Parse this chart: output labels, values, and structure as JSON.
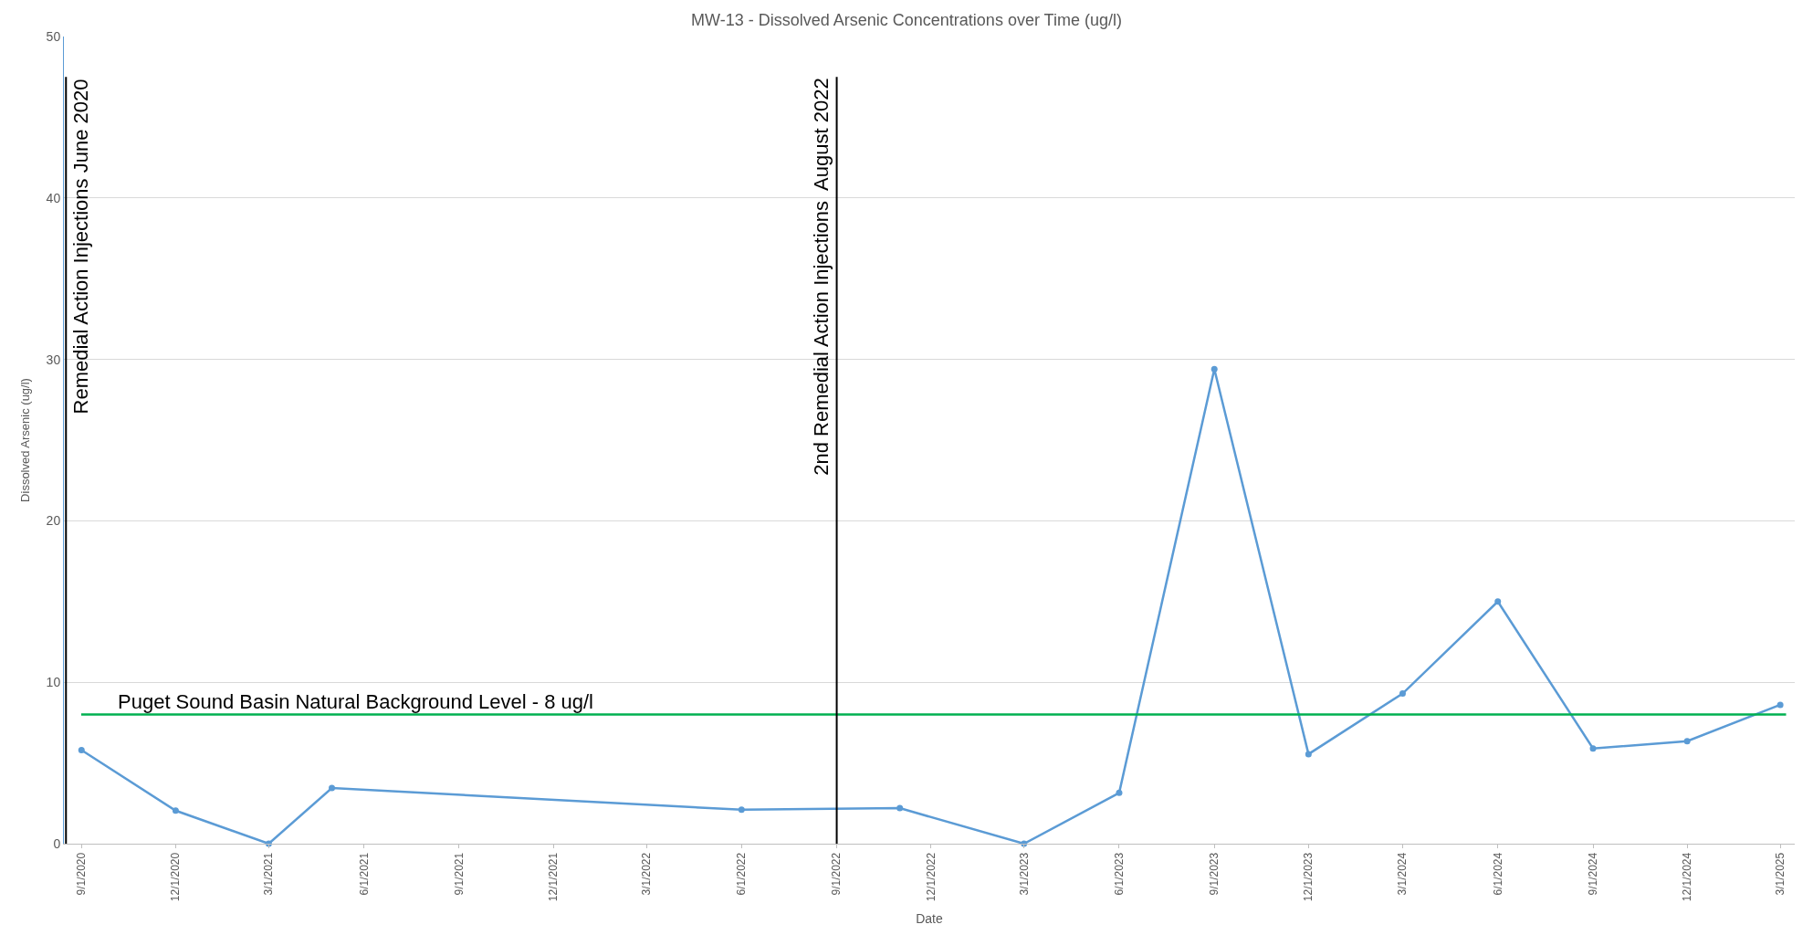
{
  "chart_data": {
    "type": "line",
    "title": "MW-13 - Dissolved Arsenic Concentrations over Time (ug/l)",
    "xlabel": "Date",
    "ylabel": "Dissolved Arsenic (ug/l)",
    "x": [
      "2020-09-01",
      "2020-12-01",
      "2021-03-01",
      "2021-05-01",
      "2022-06-01",
      "2022-11-01",
      "2023-03-01",
      "2023-06-01",
      "2023-09-01",
      "2023-12-01",
      "2024-03-01",
      "2024-06-01",
      "2024-09-01",
      "2024-12-01",
      "2025-03-01"
    ],
    "series": [
      {
        "color": "#5b9bd5",
        "values": [
          5.8,
          2.05,
          0,
          3.45,
          2.1,
          2.2,
          0,
          3.15,
          29.4,
          5.55,
          9.3,
          15.0,
          5.9,
          6.35,
          8.6
        ]
      }
    ],
    "xlim": [
      "2020-08-15",
      "2025-03-15"
    ],
    "ylim": [
      0,
      50
    ],
    "yticks": [
      0,
      10,
      20,
      30,
      40,
      50
    ],
    "xticks": [
      {
        "value": "2020-09-01",
        "label": "9/1/2020"
      },
      {
        "value": "2020-12-01",
        "label": "12/1/2020"
      },
      {
        "value": "2021-03-01",
        "label": "3/1/2021"
      },
      {
        "value": "2021-06-01",
        "label": "6/1/2021"
      },
      {
        "value": "2021-09-01",
        "label": "9/1/2021"
      },
      {
        "value": "2021-12-01",
        "label": "12/1/2021"
      },
      {
        "value": "2022-03-01",
        "label": "3/1/2022"
      },
      {
        "value": "2022-06-01",
        "label": "6/1/2022"
      },
      {
        "value": "2022-09-01",
        "label": "9/1/2022"
      },
      {
        "value": "2022-12-01",
        "label": "12/1/2022"
      },
      {
        "value": "2023-03-01",
        "label": "3/1/2023"
      },
      {
        "value": "2023-06-01",
        "label": "6/1/2023"
      },
      {
        "value": "2023-09-01",
        "label": "9/1/2023"
      },
      {
        "value": "2023-12-01",
        "label": "12/1/2023"
      },
      {
        "value": "2024-03-01",
        "label": "3/1/2024"
      },
      {
        "value": "2024-06-01",
        "label": "6/1/2024"
      },
      {
        "value": "2024-09-01",
        "label": "9/1/2024"
      },
      {
        "value": "2024-12-01",
        "label": "12/1/2024"
      },
      {
        "value": "2025-03-01",
        "label": "3/1/2025"
      }
    ],
    "ref_lines": [
      {
        "axis": "y",
        "value": 8,
        "label": "Puget Sound Basin Natural Background Level - 8 ug/l",
        "color": "#00b050"
      },
      {
        "axis": "x",
        "value": "2020-08-17",
        "label": "Remedial Action Injections June 2020",
        "color": "#000000"
      },
      {
        "axis": "x",
        "value": "2022-09-01",
        "label": "2nd Remedial Action Injections  August 2022",
        "color": "#000000"
      }
    ],
    "grid": "y",
    "marker": "circle",
    "line_style": "solid",
    "legend": false
  }
}
